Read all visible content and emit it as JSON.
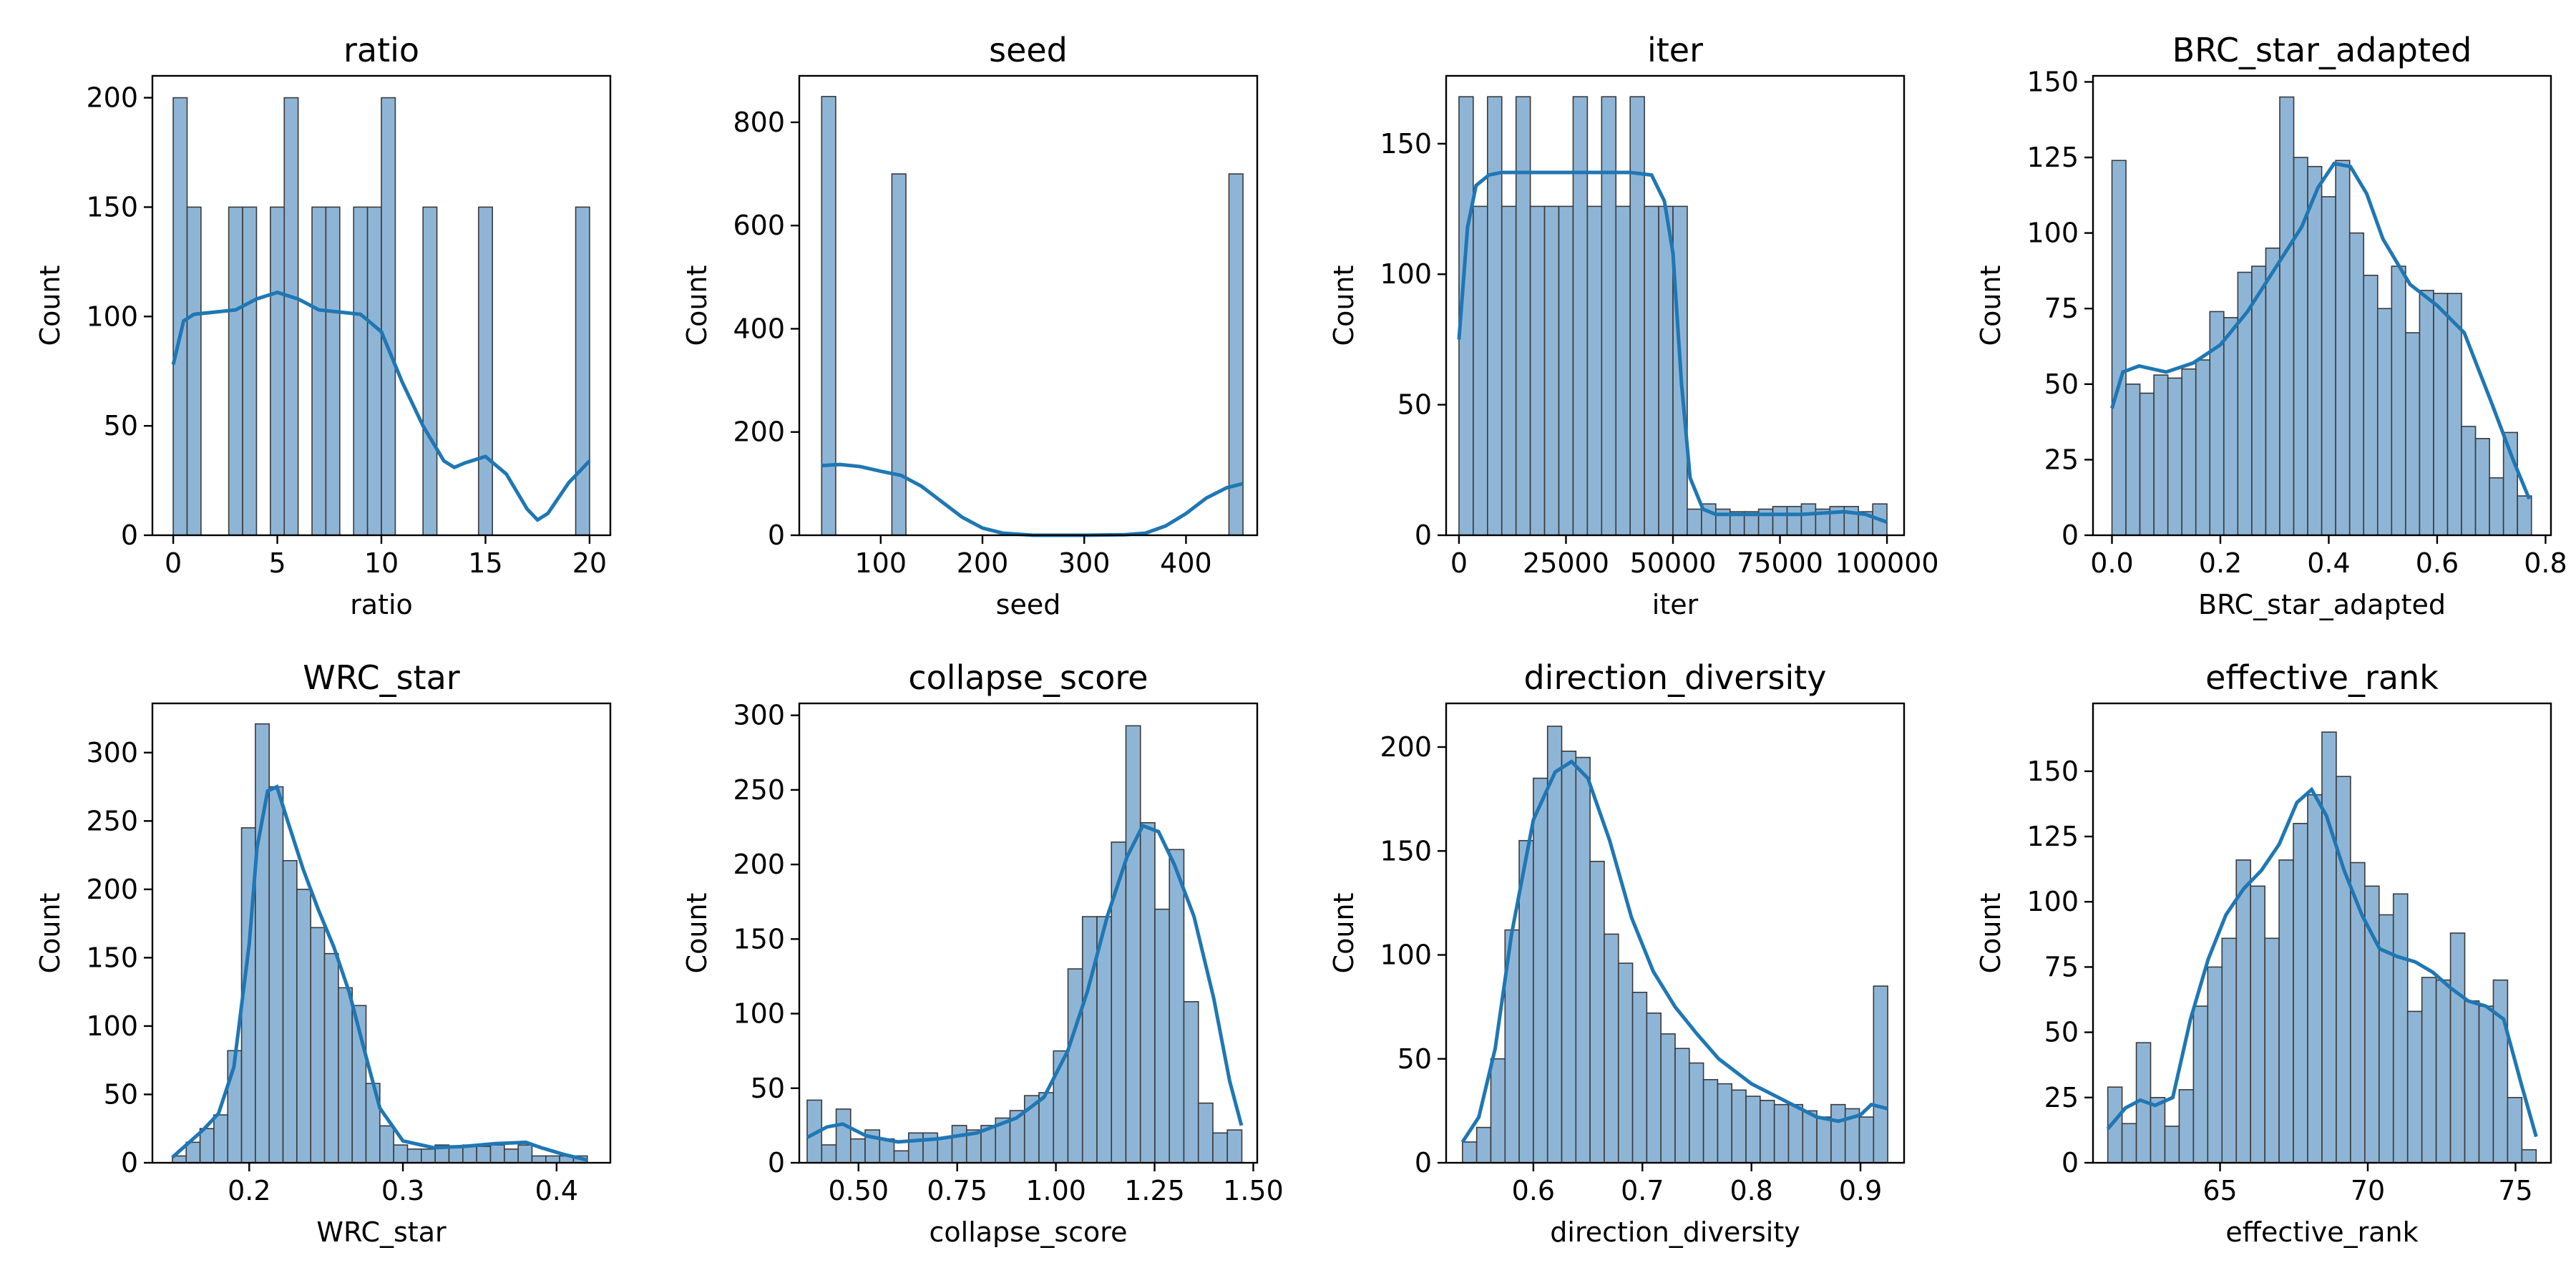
{
  "chart_data": [
    {
      "type": "histogram",
      "title": "ratio",
      "xlabel": "ratio",
      "ylabel": "Count",
      "xlim": [
        -1,
        21
      ],
      "ylim": [
        0,
        210
      ],
      "xticks": [
        0,
        5,
        10,
        15,
        20
      ],
      "xtick_labels": [
        "0",
        "5",
        "10",
        "15",
        "20"
      ],
      "yticks": [
        0,
        50,
        100,
        150,
        200
      ],
      "ytick_labels": [
        "0",
        "50",
        "100",
        "150",
        "200"
      ],
      "bins": {
        "start": 0,
        "width": 0.6667,
        "counts": [
          200,
          150,
          0,
          0,
          150,
          150,
          0,
          150,
          200,
          0,
          150,
          150,
          0,
          150,
          150,
          200,
          0,
          0,
          150,
          0,
          0,
          0,
          150,
          0,
          0,
          0,
          0,
          0,
          0,
          150
        ]
      },
      "kde": [
        [
          0,
          78
        ],
        [
          0.5,
          98
        ],
        [
          1,
          101
        ],
        [
          2,
          102
        ],
        [
          3,
          103
        ],
        [
          4,
          108
        ],
        [
          5,
          111
        ],
        [
          6,
          108
        ],
        [
          7,
          103
        ],
        [
          8,
          102
        ],
        [
          9,
          101
        ],
        [
          10,
          93
        ],
        [
          11,
          70
        ],
        [
          12,
          50
        ],
        [
          13,
          34
        ],
        [
          13.5,
          31
        ],
        [
          14,
          33
        ],
        [
          15,
          36
        ],
        [
          16,
          28
        ],
        [
          17,
          12
        ],
        [
          17.5,
          7
        ],
        [
          18,
          10
        ],
        [
          19,
          24
        ],
        [
          20,
          34
        ]
      ]
    },
    {
      "type": "histogram",
      "title": "seed",
      "xlabel": "seed",
      "ylabel": "Count",
      "xlim": [
        20,
        470
      ],
      "ylim": [
        0,
        890
      ],
      "xticks": [
        100,
        200,
        300,
        400
      ],
      "xtick_labels": [
        "100",
        "200",
        "300",
        "400"
      ],
      "yticks": [
        0,
        200,
        400,
        600,
        800
      ],
      "ytick_labels": [
        "0",
        "200",
        "400",
        "600",
        "800"
      ],
      "bins": {
        "start": 42,
        "width": 13.8,
        "counts": [
          850,
          0,
          0,
          0,
          0,
          700,
          0,
          0,
          0,
          0,
          0,
          0,
          0,
          0,
          0,
          0,
          0,
          0,
          0,
          0,
          0,
          0,
          0,
          0,
          0,
          0,
          0,
          0,
          0,
          700
        ]
      },
      "kde": [
        [
          42,
          135
        ],
        [
          60,
          137
        ],
        [
          80,
          133
        ],
        [
          100,
          124
        ],
        [
          120,
          116
        ],
        [
          140,
          95
        ],
        [
          160,
          65
        ],
        [
          180,
          35
        ],
        [
          200,
          14
        ],
        [
          220,
          4
        ],
        [
          250,
          0
        ],
        [
          300,
          0
        ],
        [
          340,
          1
        ],
        [
          360,
          4
        ],
        [
          380,
          18
        ],
        [
          400,
          42
        ],
        [
          420,
          72
        ],
        [
          440,
          92
        ],
        [
          456,
          100
        ]
      ]
    },
    {
      "type": "histogram",
      "title": "iter",
      "xlabel": "iter",
      "ylabel": "Count",
      "xlim": [
        -3000,
        104000
      ],
      "ylim": [
        0,
        176
      ],
      "xticks": [
        0,
        25000,
        50000,
        75000,
        100000
      ],
      "xtick_labels": [
        "0",
        "25000",
        "50000",
        "75000",
        "100000"
      ],
      "yticks": [
        0,
        50,
        100,
        150
      ],
      "ytick_labels": [
        "0",
        "50",
        "100",
        "150"
      ],
      "bins": {
        "start": 0,
        "width": 3333.33,
        "counts": [
          168,
          126,
          168,
          126,
          168,
          126,
          126,
          126,
          168,
          126,
          168,
          126,
          168,
          126,
          126,
          126,
          10,
          12,
          10,
          9,
          9,
          10,
          11,
          11,
          12,
          10,
          11,
          11,
          9,
          12
        ]
      },
      "kde": [
        [
          0,
          75
        ],
        [
          2000,
          118
        ],
        [
          4000,
          134
        ],
        [
          7000,
          138
        ],
        [
          10000,
          139
        ],
        [
          20000,
          139
        ],
        [
          30000,
          139
        ],
        [
          40000,
          139
        ],
        [
          45000,
          138
        ],
        [
          48000,
          128
        ],
        [
          50000,
          108
        ],
        [
          52000,
          58
        ],
        [
          54000,
          22
        ],
        [
          57000,
          10
        ],
        [
          60000,
          8
        ],
        [
          70000,
          8
        ],
        [
          80000,
          8
        ],
        [
          90000,
          9
        ],
        [
          95000,
          8
        ],
        [
          100000,
          5
        ]
      ]
    },
    {
      "type": "histogram",
      "title": "BRC_star_adapted",
      "xlabel": "BRC_star_adapted",
      "ylabel": "Count",
      "xlim": [
        -0.035,
        0.81
      ],
      "ylim": [
        0,
        152
      ],
      "xticks": [
        0.0,
        0.2,
        0.4,
        0.6,
        0.8
      ],
      "xtick_labels": [
        "0.0",
        "0.2",
        "0.4",
        "0.6",
        "0.8"
      ],
      "yticks": [
        0,
        25,
        50,
        75,
        100,
        125,
        150
      ],
      "ytick_labels": [
        "0",
        "25",
        "50",
        "75",
        "100",
        "125",
        "150"
      ],
      "bins": {
        "start": 0.0,
        "width": 0.0258,
        "counts": [
          124,
          50,
          47,
          53,
          52,
          55,
          58,
          74,
          72,
          87,
          89,
          95,
          145,
          125,
          122,
          112,
          124,
          100,
          86,
          75,
          89,
          67,
          81,
          80,
          80,
          36,
          32,
          19,
          34,
          13
        ]
      },
      "kde": [
        [
          0,
          42
        ],
        [
          0.02,
          54
        ],
        [
          0.05,
          56
        ],
        [
          0.1,
          54
        ],
        [
          0.15,
          57
        ],
        [
          0.2,
          63
        ],
        [
          0.25,
          74
        ],
        [
          0.3,
          88
        ],
        [
          0.35,
          102
        ],
        [
          0.38,
          115
        ],
        [
          0.41,
          123
        ],
        [
          0.44,
          122
        ],
        [
          0.47,
          113
        ],
        [
          0.5,
          98
        ],
        [
          0.55,
          83
        ],
        [
          0.6,
          76
        ],
        [
          0.65,
          67
        ],
        [
          0.7,
          44
        ],
        [
          0.74,
          25
        ],
        [
          0.77,
          12
        ]
      ]
    },
    {
      "type": "histogram",
      "title": "WRC_star",
      "xlabel": "WRC_star",
      "ylabel": "Count",
      "xlim": [
        0.137,
        0.435
      ],
      "ylim": [
        0,
        336
      ],
      "xticks": [
        0.2,
        0.3,
        0.4
      ],
      "xtick_labels": [
        "0.2",
        "0.3",
        "0.4"
      ],
      "yticks": [
        0,
        50,
        100,
        150,
        200,
        250,
        300
      ],
      "ytick_labels": [
        "0",
        "50",
        "100",
        "150",
        "200",
        "250",
        "300"
      ],
      "bins": {
        "start": 0.15,
        "width": 0.009,
        "counts": [
          5,
          15,
          25,
          35,
          82,
          245,
          321,
          275,
          221,
          200,
          172,
          153,
          128,
          115,
          58,
          27,
          13,
          10,
          10,
          13,
          12,
          13,
          12,
          13,
          10,
          13,
          5,
          5,
          5,
          5
        ]
      },
      "kde": [
        [
          0.15,
          4
        ],
        [
          0.16,
          14
        ],
        [
          0.17,
          24
        ],
        [
          0.18,
          36
        ],
        [
          0.19,
          70
        ],
        [
          0.2,
          160
        ],
        [
          0.205,
          230
        ],
        [
          0.212,
          272
        ],
        [
          0.218,
          275
        ],
        [
          0.225,
          250
        ],
        [
          0.235,
          215
        ],
        [
          0.245,
          185
        ],
        [
          0.255,
          158
        ],
        [
          0.265,
          125
        ],
        [
          0.275,
          82
        ],
        [
          0.285,
          40
        ],
        [
          0.3,
          16
        ],
        [
          0.32,
          11
        ],
        [
          0.34,
          12
        ],
        [
          0.36,
          14
        ],
        [
          0.38,
          15
        ],
        [
          0.39,
          11
        ],
        [
          0.405,
          6
        ],
        [
          0.42,
          2
        ]
      ]
    },
    {
      "type": "histogram",
      "title": "collapse_score",
      "xlabel": "collapse_score",
      "ylabel": "Count",
      "xlim": [
        0.35,
        1.51
      ],
      "ylim": [
        0,
        308
      ],
      "xticks": [
        0.5,
        0.75,
        1.0,
        1.25,
        1.5
      ],
      "xtick_labels": [
        "0.50",
        "0.75",
        "1.00",
        "1.25",
        "1.50"
      ],
      "yticks": [
        0,
        50,
        100,
        150,
        200,
        250,
        300
      ],
      "ytick_labels": [
        "0",
        "50",
        "100",
        "150",
        "200",
        "250",
        "300"
      ],
      "bins": {
        "start": 0.37,
        "width": 0.0367,
        "counts": [
          42,
          12,
          36,
          16,
          22,
          16,
          8,
          20,
          20,
          17,
          25,
          22,
          25,
          30,
          35,
          45,
          47,
          75,
          130,
          165,
          165,
          215,
          293,
          228,
          170,
          210,
          108,
          40,
          20,
          22
        ]
      },
      "kde": [
        [
          0.37,
          17
        ],
        [
          0.42,
          24
        ],
        [
          0.46,
          26
        ],
        [
          0.52,
          18
        ],
        [
          0.6,
          14
        ],
        [
          0.7,
          16
        ],
        [
          0.8,
          20
        ],
        [
          0.9,
          30
        ],
        [
          0.97,
          44
        ],
        [
          1.03,
          75
        ],
        [
          1.08,
          115
        ],
        [
          1.13,
          165
        ],
        [
          1.18,
          205
        ],
        [
          1.22,
          226
        ],
        [
          1.26,
          222
        ],
        [
          1.3,
          200
        ],
        [
          1.35,
          165
        ],
        [
          1.4,
          110
        ],
        [
          1.44,
          55
        ],
        [
          1.47,
          25
        ]
      ]
    },
    {
      "type": "histogram",
      "title": "direction_diversity",
      "xlabel": "direction_diversity",
      "ylabel": "Count",
      "xlim": [
        0.52,
        0.94
      ],
      "ylim": [
        0,
        221
      ],
      "xticks": [
        0.6,
        0.7,
        0.8,
        0.9
      ],
      "xtick_labels": [
        "0.6",
        "0.7",
        "0.8",
        "0.9"
      ],
      "yticks": [
        0,
        50,
        100,
        150,
        200
      ],
      "ytick_labels": [
        "0",
        "50",
        "100",
        "150",
        "200"
      ],
      "bins": {
        "start": 0.535,
        "width": 0.013,
        "counts": [
          10,
          17,
          50,
          112,
          155,
          185,
          210,
          198,
          195,
          145,
          110,
          96,
          82,
          72,
          62,
          55,
          48,
          40,
          38,
          35,
          32,
          30,
          28,
          28,
          25,
          22,
          28,
          26,
          22,
          85
        ]
      },
      "kde": [
        [
          0.535,
          10
        ],
        [
          0.55,
          22
        ],
        [
          0.565,
          55
        ],
        [
          0.58,
          110
        ],
        [
          0.6,
          165
        ],
        [
          0.62,
          188
        ],
        [
          0.635,
          193
        ],
        [
          0.65,
          185
        ],
        [
          0.67,
          155
        ],
        [
          0.69,
          118
        ],
        [
          0.71,
          92
        ],
        [
          0.73,
          75
        ],
        [
          0.75,
          62
        ],
        [
          0.77,
          50
        ],
        [
          0.8,
          38
        ],
        [
          0.83,
          30
        ],
        [
          0.86,
          22
        ],
        [
          0.88,
          20
        ],
        [
          0.9,
          23
        ],
        [
          0.91,
          28
        ],
        [
          0.925,
          26
        ]
      ]
    },
    {
      "type": "histogram",
      "title": "effective_rank",
      "xlabel": "effective_rank",
      "ylabel": "Count",
      "xlim": [
        60.7,
        76.2
      ],
      "ylim": [
        0,
        176
      ],
      "xticks": [
        65,
        70,
        75
      ],
      "xtick_labels": [
        "65",
        "70",
        "75"
      ],
      "yticks": [
        0,
        25,
        50,
        75,
        100,
        125,
        150
      ],
      "ytick_labels": [
        "0",
        "25",
        "50",
        "75",
        "100",
        "125",
        "150"
      ],
      "bins": {
        "start": 61.2,
        "width": 0.4833,
        "counts": [
          29,
          15,
          46,
          25,
          14,
          28,
          60,
          75,
          86,
          116,
          106,
          86,
          116,
          130,
          141,
          165,
          148,
          115,
          106,
          95,
          103,
          58,
          71,
          70,
          88,
          62,
          60,
          70,
          25,
          5
        ]
      },
      "kde": [
        [
          61.2,
          13
        ],
        [
          61.8,
          21
        ],
        [
          62.3,
          24
        ],
        [
          62.8,
          22
        ],
        [
          63.4,
          25
        ],
        [
          64,
          55
        ],
        [
          64.6,
          78
        ],
        [
          65.2,
          95
        ],
        [
          65.8,
          105
        ],
        [
          66.4,
          112
        ],
        [
          67,
          122
        ],
        [
          67.6,
          138
        ],
        [
          68.1,
          143
        ],
        [
          68.6,
          133
        ],
        [
          69.2,
          112
        ],
        [
          69.8,
          95
        ],
        [
          70.4,
          82
        ],
        [
          71,
          79
        ],
        [
          71.6,
          77
        ],
        [
          72.2,
          73
        ],
        [
          72.8,
          67
        ],
        [
          73.4,
          62
        ],
        [
          74,
          60
        ],
        [
          74.6,
          55
        ],
        [
          75.2,
          30
        ],
        [
          75.7,
          10
        ]
      ]
    }
  ]
}
